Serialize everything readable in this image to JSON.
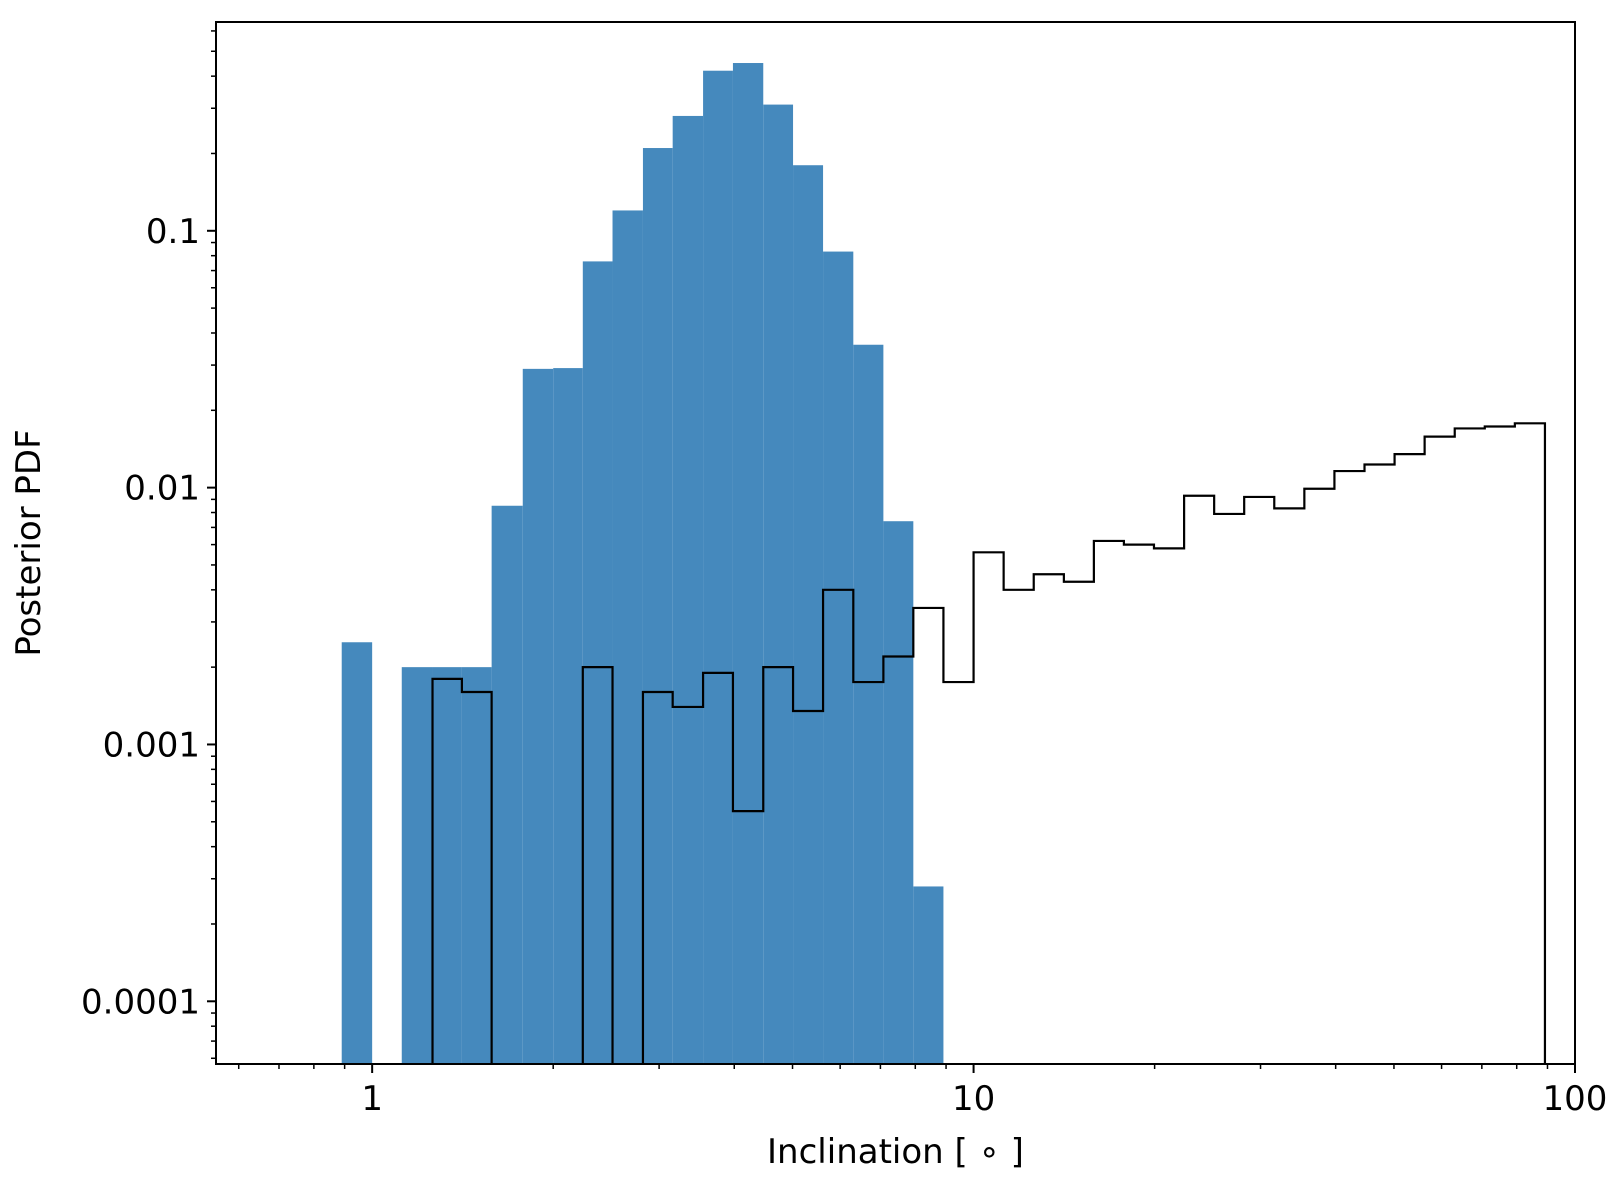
{
  "chart_data": {
    "type": "bar",
    "title": "",
    "xlabel": "Inclination [$^\\circ$]",
    "xlabel_display": "Inclination [ ∘ ]",
    "ylabel": "Posterior PDF",
    "xscale": "log",
    "yscale": "log",
    "xlim": [
      0.55,
      100
    ],
    "ylim": [
      5.7e-05,
      0.65
    ],
    "grid": false,
    "x_ticks": [
      {
        "value": 1,
        "label": "1"
      },
      {
        "value": 10,
        "label": "10"
      },
      {
        "value": 100,
        "label": "100"
      }
    ],
    "y_ticks": [
      {
        "value": 0.0001,
        "label": "0.0001"
      },
      {
        "value": 0.001,
        "label": "0.001"
      },
      {
        "value": 0.01,
        "label": "0.01"
      },
      {
        "value": 0.1,
        "label": "0.1"
      }
    ],
    "series": [
      {
        "style": "filled-bars",
        "color": "#4589bd",
        "bins": [
          {
            "x0": 0.89,
            "x1": 1.0,
            "value": 0.0025
          },
          {
            "x0": 1.12,
            "x1": 1.26,
            "value": 0.002
          },
          {
            "x0": 1.26,
            "x1": 1.41,
            "value": 0.002
          },
          {
            "x0": 1.41,
            "x1": 1.58,
            "value": 0.002
          },
          {
            "x0": 1.58,
            "x1": 1.78,
            "value": 0.0085
          },
          {
            "x0": 1.78,
            "x1": 2.0,
            "value": 0.029
          },
          {
            "x0": 2.0,
            "x1": 2.24,
            "value": 0.0292
          },
          {
            "x0": 2.24,
            "x1": 2.51,
            "value": 0.076
          },
          {
            "x0": 2.51,
            "x1": 2.82,
            "value": 0.12
          },
          {
            "x0": 2.82,
            "x1": 3.16,
            "value": 0.21
          },
          {
            "x0": 3.16,
            "x1": 3.55,
            "value": 0.28
          },
          {
            "x0": 3.55,
            "x1": 3.98,
            "value": 0.42
          },
          {
            "x0": 3.98,
            "x1": 4.47,
            "value": 0.45
          },
          {
            "x0": 4.47,
            "x1": 5.01,
            "value": 0.31
          },
          {
            "x0": 5.01,
            "x1": 5.62,
            "value": 0.18
          },
          {
            "x0": 5.62,
            "x1": 6.31,
            "value": 0.083
          },
          {
            "x0": 6.31,
            "x1": 7.08,
            "value": 0.036
          },
          {
            "x0": 7.08,
            "x1": 7.94,
            "value": 0.0074
          },
          {
            "x0": 7.94,
            "x1": 8.91,
            "value": 0.00028
          }
        ]
      },
      {
        "style": "step-outline",
        "color": "#000000",
        "bins": [
          {
            "x0": 1.26,
            "x1": 1.41,
            "value": 0.0018
          },
          {
            "x0": 1.41,
            "x1": 1.58,
            "value": 0.0016
          },
          {
            "x0": 2.24,
            "x1": 2.51,
            "value": 0.002
          },
          {
            "x0": 2.82,
            "x1": 3.16,
            "value": 0.0016
          },
          {
            "x0": 3.16,
            "x1": 3.55,
            "value": 0.0014
          },
          {
            "x0": 3.55,
            "x1": 3.98,
            "value": 0.0019
          },
          {
            "x0": 3.98,
            "x1": 4.47,
            "value": 0.00055
          },
          {
            "x0": 4.47,
            "x1": 5.01,
            "value": 0.002
          },
          {
            "x0": 5.01,
            "x1": 5.62,
            "value": 0.00135
          },
          {
            "x0": 5.62,
            "x1": 6.31,
            "value": 0.004
          },
          {
            "x0": 6.31,
            "x1": 7.08,
            "value": 0.00175
          },
          {
            "x0": 7.08,
            "x1": 7.94,
            "value": 0.0022
          },
          {
            "x0": 7.94,
            "x1": 8.91,
            "value": 0.0034
          },
          {
            "x0": 8.91,
            "x1": 10.0,
            "value": 0.00175
          },
          {
            "x0": 10.0,
            "x1": 11.22,
            "value": 0.0056
          },
          {
            "x0": 11.22,
            "x1": 12.59,
            "value": 0.004
          },
          {
            "x0": 12.59,
            "x1": 14.13,
            "value": 0.0046
          },
          {
            "x0": 14.13,
            "x1": 15.85,
            "value": 0.0043
          },
          {
            "x0": 15.85,
            "x1": 17.78,
            "value": 0.0062
          },
          {
            "x0": 17.78,
            "x1": 19.95,
            "value": 0.006
          },
          {
            "x0": 19.95,
            "x1": 22.39,
            "value": 0.0058
          },
          {
            "x0": 22.39,
            "x1": 25.12,
            "value": 0.0093
          },
          {
            "x0": 25.12,
            "x1": 28.18,
            "value": 0.0079
          },
          {
            "x0": 28.18,
            "x1": 31.62,
            "value": 0.0092
          },
          {
            "x0": 31.62,
            "x1": 35.48,
            "value": 0.0083
          },
          {
            "x0": 35.48,
            "x1": 39.81,
            "value": 0.0099
          },
          {
            "x0": 39.81,
            "x1": 44.67,
            "value": 0.0116
          },
          {
            "x0": 44.67,
            "x1": 50.12,
            "value": 0.0123
          },
          {
            "x0": 50.12,
            "x1": 56.23,
            "value": 0.0135
          },
          {
            "x0": 56.23,
            "x1": 63.1,
            "value": 0.0158
          },
          {
            "x0": 63.1,
            "x1": 70.79,
            "value": 0.017
          },
          {
            "x0": 70.79,
            "x1": 79.43,
            "value": 0.0173
          },
          {
            "x0": 79.43,
            "x1": 89.13,
            "value": 0.0178
          }
        ]
      }
    ]
  }
}
